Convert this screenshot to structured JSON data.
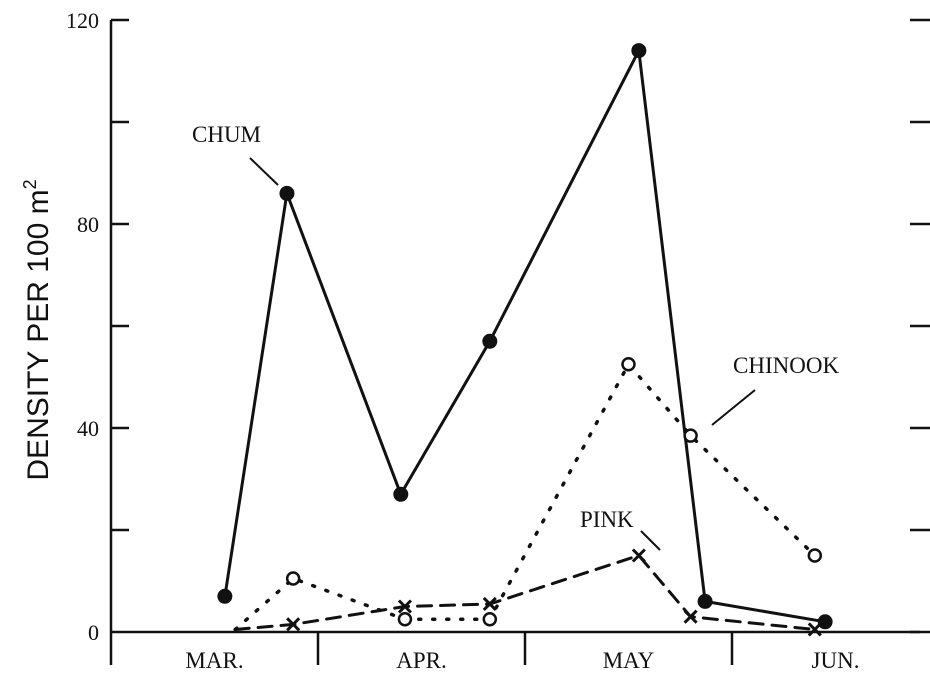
{
  "chart_data": {
    "type": "line",
    "title": "",
    "xlabel": "",
    "ylabel": "DENSITY PER 100 m",
    "ylabel_superscript": "2",
    "ylim": [
      0,
      120
    ],
    "y_ticks": [
      "0",
      "40",
      "80",
      "120"
    ],
    "x_months": [
      "MAR.",
      "APR.",
      "MAY",
      "JUN."
    ],
    "grid": false,
    "series": [
      {
        "name": "CHUM",
        "line_style": "solid",
        "marker": "filled-circle",
        "color": "#111111",
        "points": [
          [
            0.55,
            7
          ],
          [
            0.85,
            86
          ],
          [
            1.4,
            27
          ],
          [
            1.83,
            57
          ],
          [
            2.55,
            114
          ],
          [
            2.87,
            6
          ],
          [
            3.45,
            2
          ]
        ]
      },
      {
        "name": "CHINOOK",
        "line_style": "dotted",
        "marker": "open-circle",
        "color": "#111111",
        "points": [
          [
            0.6,
            0.5
          ],
          [
            0.88,
            10.5
          ],
          [
            1.42,
            2.5
          ],
          [
            1.83,
            2.5
          ],
          [
            2.5,
            52.5
          ],
          [
            2.8,
            38.5
          ],
          [
            3.4,
            15
          ]
        ]
      },
      {
        "name": "PINK",
        "line_style": "dashed",
        "marker": "x",
        "color": "#111111",
        "points": [
          [
            0.6,
            0.5
          ],
          [
            0.88,
            1.5
          ],
          [
            1.42,
            5
          ],
          [
            1.83,
            5.5
          ],
          [
            2.55,
            15
          ],
          [
            2.8,
            3
          ],
          [
            3.4,
            0.5
          ]
        ]
      }
    ]
  }
}
